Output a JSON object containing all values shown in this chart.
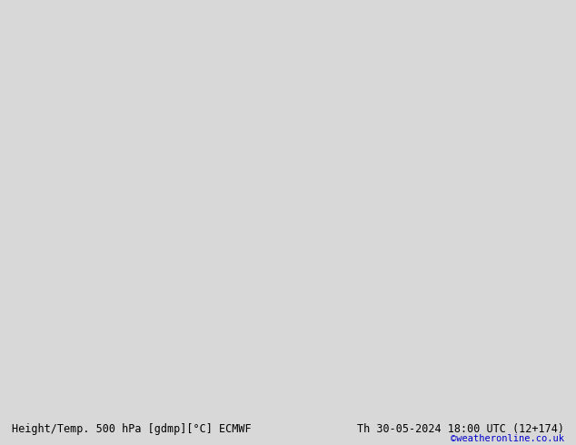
{
  "title_left": "Height/Temp. 500 hPa [gdmp][°C] ECMWF",
  "title_right": "Th 30-05-2024 18:00 UTC (12+174)",
  "watermark": "©weatheronline.co.uk",
  "background_color": "#d8d8d8",
  "land_color": "#c8e6a0",
  "ocean_color": "#d8d8d8",
  "fig_width": 6.34,
  "fig_height": 4.9,
  "dpi": 100,
  "map_extent": [
    -20,
    55,
    -40,
    40
  ],
  "black_contour_color": "#000000",
  "red_contour_color": "#cc0000",
  "orange_contour_color": "#ff8c00",
  "green_contour_color": "#00aa00",
  "cyan_contour_color": "#00cccc",
  "magenta_contour_color": "#cc00cc",
  "bottom_bar_color": "#f0f0f0",
  "text_color": "#000000",
  "blue_text_color": "#0000cc"
}
